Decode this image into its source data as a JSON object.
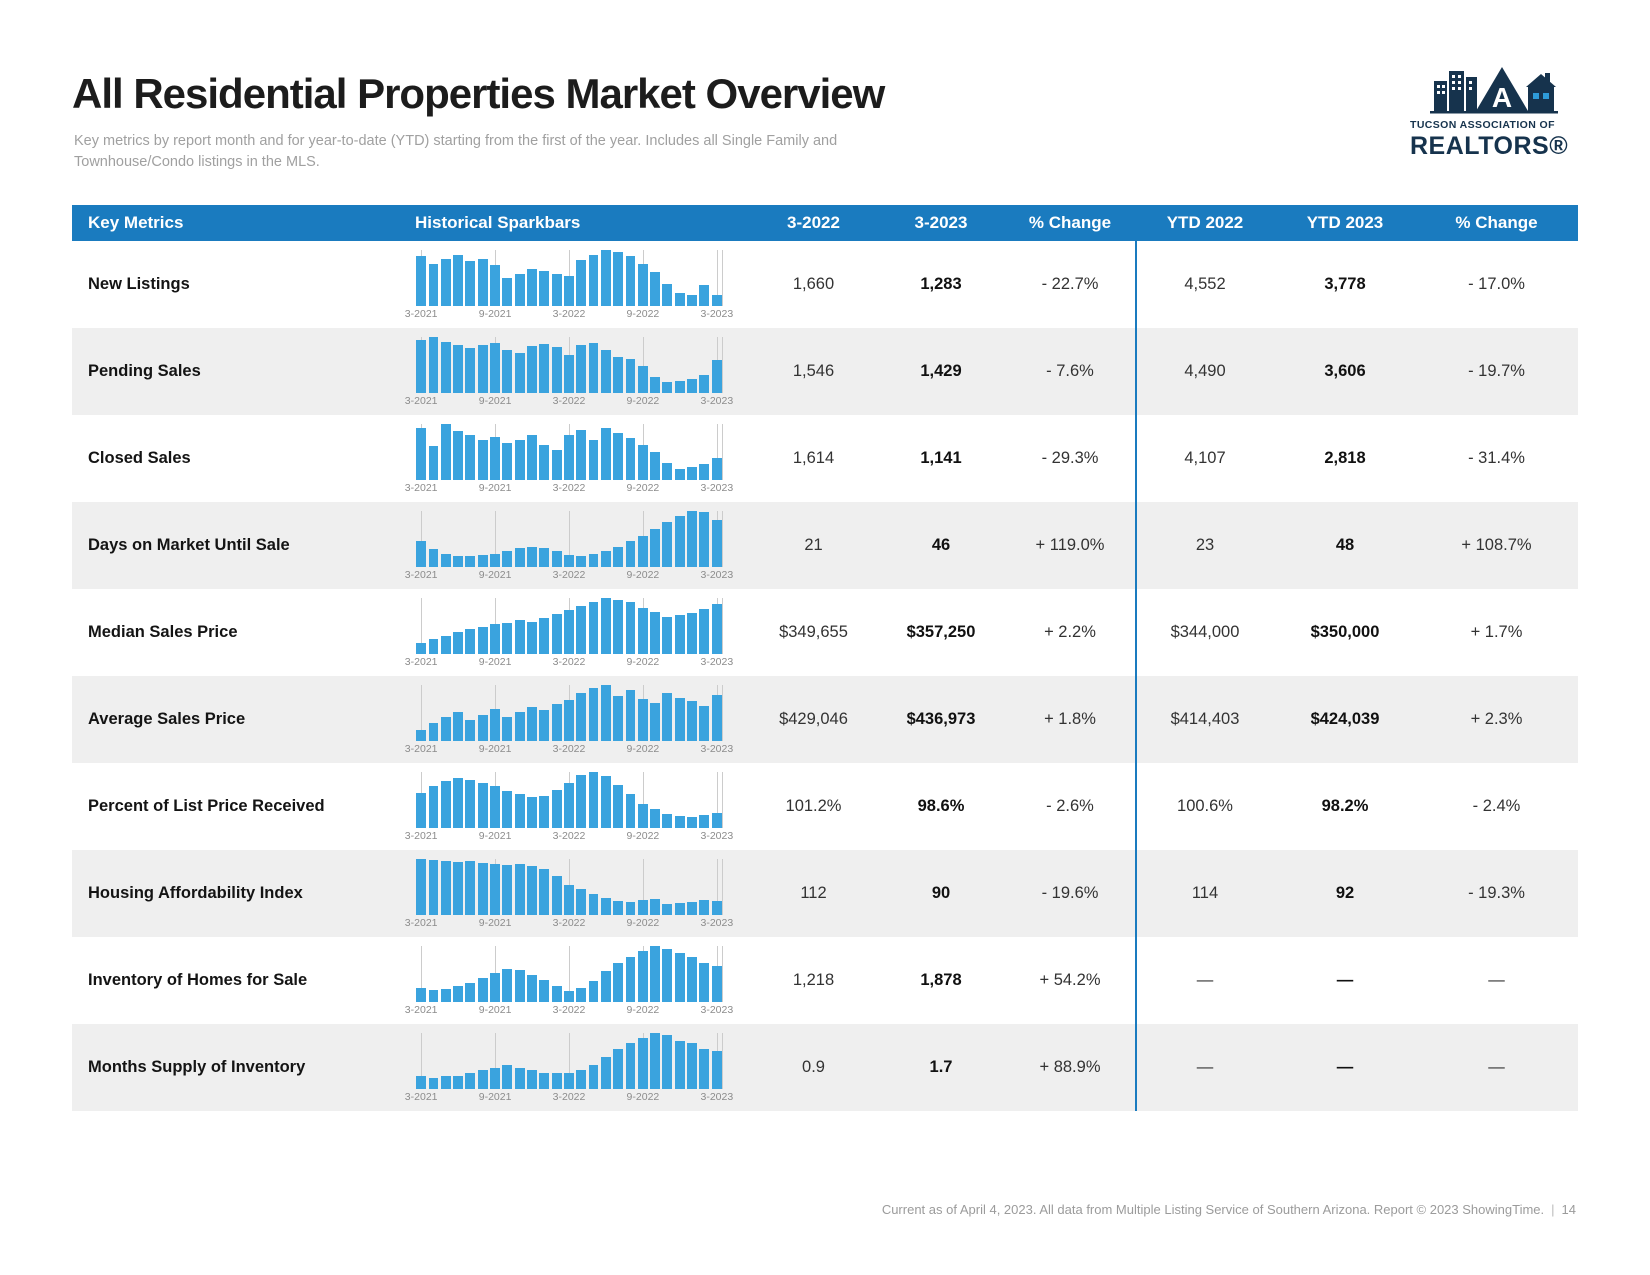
{
  "page": {
    "title": "All Residential Properties Market Overview",
    "subtitle": "Key metrics by report month and for year-to-date (YTD) starting from the first of the year. Includes all Single Family and Townhouse/Condo listings in the MLS.",
    "footer_text": "Current as of April 4, 2023. All data from Multiple Listing Service of Southern Arizona. Report © 2023 ShowingTime.",
    "footer_separator": "|",
    "page_number": "14"
  },
  "logo": {
    "line1": "TUCSON ASSOCIATION OF",
    "line2": "REALTORS®"
  },
  "colors": {
    "header_blue": "#1a7bbf",
    "bar_blue": "#3aa3de",
    "alt_row_gray": "#efefef",
    "logo_navy": "#16334d"
  },
  "table": {
    "headers": [
      "Key Metrics",
      "Historical Sparkbars",
      "3-2022",
      "3-2023",
      "% Change",
      "YTD 2022",
      "YTD 2023",
      "% Change"
    ],
    "axis_labels": [
      "3-2021",
      "9-2021",
      "3-2022",
      "9-2022",
      "3-2023"
    ],
    "rows": [
      {
        "metric": "New Listings",
        "m2022": "1,660",
        "m2023": "1,283",
        "change": "- 22.7%",
        "ytd2022": "4,552",
        "ytd2023": "3,778",
        "ytd_change": "- 17.0%"
      },
      {
        "metric": "Pending Sales",
        "m2022": "1,546",
        "m2023": "1,429",
        "change": "- 7.6%",
        "ytd2022": "4,490",
        "ytd2023": "3,606",
        "ytd_change": "- 19.7%"
      },
      {
        "metric": "Closed Sales",
        "m2022": "1,614",
        "m2023": "1,141",
        "change": "- 29.3%",
        "ytd2022": "4,107",
        "ytd2023": "2,818",
        "ytd_change": "- 31.4%"
      },
      {
        "metric": "Days on Market Until Sale",
        "m2022": "21",
        "m2023": "46",
        "change": "+ 119.0%",
        "ytd2022": "23",
        "ytd2023": "48",
        "ytd_change": "+ 108.7%"
      },
      {
        "metric": "Median Sales Price",
        "m2022": "$349,655",
        "m2023": "$357,250",
        "change": "+ 2.2%",
        "ytd2022": "$344,000",
        "ytd2023": "$350,000",
        "ytd_change": "+ 1.7%"
      },
      {
        "metric": "Average Sales Price",
        "m2022": "$429,046",
        "m2023": "$436,973",
        "change": "+ 1.8%",
        "ytd2022": "$414,403",
        "ytd2023": "$424,039",
        "ytd_change": "+ 2.3%"
      },
      {
        "metric": "Percent of List Price Received",
        "m2022": "101.2%",
        "m2023": "98.6%",
        "change": "- 2.6%",
        "ytd2022": "100.6%",
        "ytd2023": "98.2%",
        "ytd_change": "- 2.4%"
      },
      {
        "metric": "Housing Affordability Index",
        "m2022": "112",
        "m2023": "90",
        "change": "- 19.6%",
        "ytd2022": "114",
        "ytd2023": "92",
        "ytd_change": "- 19.3%"
      },
      {
        "metric": "Inventory of Homes for Sale",
        "m2022": "1,218",
        "m2023": "1,878",
        "change": "+ 54.2%",
        "ytd2022": "—",
        "ytd2023": "—",
        "ytd_change": "—"
      },
      {
        "metric": "Months Supply of Inventory",
        "m2022": "0.9",
        "m2023": "1.7",
        "change": "+ 88.9%",
        "ytd2022": "—",
        "ytd2023": "—",
        "ytd_change": "—"
      }
    ]
  },
  "chart_data": {
    "type": "bar",
    "x": [
      "3-2021",
      "4-2021",
      "5-2021",
      "6-2021",
      "7-2021",
      "8-2021",
      "9-2021",
      "10-2021",
      "11-2021",
      "12-2021",
      "1-2022",
      "2-2022",
      "3-2022",
      "4-2022",
      "5-2022",
      "6-2022",
      "7-2022",
      "8-2022",
      "9-2022",
      "10-2022",
      "11-2022",
      "12-2022",
      "1-2023",
      "2-2023",
      "3-2023"
    ],
    "x_ticks": [
      "3-2021",
      "9-2021",
      "3-2022",
      "9-2022",
      "3-2023"
    ],
    "series": [
      {
        "name": "New Listings",
        "values": [
          2056,
          1912,
          2004,
          2086,
          1968,
          2010,
          1888,
          1620,
          1714,
          1797,
          1760,
          1708,
          1660,
          1980,
          2075,
          2188,
          2140,
          2052,
          1894,
          1738,
          1512,
          1330,
          1294,
          1488,
          1283
        ]
      },
      {
        "name": "Pending Sales",
        "values": [
          1884,
          1950,
          1826,
          1760,
          1698,
          1772,
          1810,
          1648,
          1602,
          1741,
          1790,
          1712,
          1546,
          1774,
          1812,
          1650,
          1508,
          1452,
          1310,
          1066,
          952,
          978,
          1024,
          1108,
          1429
        ]
      },
      {
        "name": "Closed Sales",
        "values": [
          1755,
          1395,
          1848,
          1692,
          1605,
          1512,
          1564,
          1448,
          1498,
          1612,
          1402,
          1310,
          1614,
          1708,
          1512,
          1764,
          1648,
          1552,
          1410,
          1252,
          1044,
          902,
          946,
          1010,
          1141
        ]
      },
      {
        "name": "Days on Market Until Sale",
        "values": [
          31,
          25,
          22,
          20,
          20,
          21,
          22,
          24,
          26,
          27,
          26,
          24,
          21,
          20,
          22,
          24,
          27,
          31,
          35,
          40,
          45,
          49,
          53,
          52,
          46
        ]
      },
      {
        "name": "Median Sales Price",
        "values": [
          310000,
          315000,
          318500,
          324000,
          327500,
          329900,
          333000,
          335000,
          337500,
          336000,
          339900,
          345000,
          349655,
          355000,
          360000,
          365000,
          362500,
          359000,
          352000,
          347500,
          342000,
          344500,
          347000,
          351000,
          357250
        ]
      },
      {
        "name": "Average Sales Price",
        "values": [
          372000,
          386000,
          397000,
          406000,
          391000,
          401000,
          411000,
          396000,
          406000,
          416000,
          409000,
          421000,
          429046,
          441000,
          451000,
          457000,
          436000,
          447000,
          431000,
          422000,
          441000,
          432000,
          426000,
          417000,
          436973
        ]
      },
      {
        "name": "Percent of List Price Received",
        "values": [
          100.3,
          100.9,
          101.4,
          101.6,
          101.5,
          101.2,
          100.9,
          100.5,
          100.2,
          100.0,
          100.1,
          100.6,
          101.2,
          101.9,
          102.2,
          101.8,
          101.0,
          100.2,
          99.4,
          98.9,
          98.5,
          98.3,
          98.2,
          98.4,
          98.6
        ]
      },
      {
        "name": "Housing Affordability Index",
        "values": [
          148,
          146,
          145,
          143,
          144,
          142,
          141,
          139,
          140,
          138,
          134,
          124,
          112,
          106,
          100,
          94,
          90,
          88,
          91,
          93,
          85,
          87,
          89,
          91,
          90
        ]
      },
      {
        "name": "Inventory of Homes for Sale",
        "values": [
          1302,
          1256,
          1288,
          1346,
          1424,
          1552,
          1698,
          1804,
          1756,
          1648,
          1502,
          1348,
          1218,
          1306,
          1498,
          1746,
          1952,
          2104,
          2248,
          2396,
          2302,
          2198,
          2096,
          1954,
          1878
        ]
      },
      {
        "name": "Months Supply of Inventory",
        "values": [
          0.8,
          0.7,
          0.8,
          0.8,
          0.9,
          1.0,
          1.1,
          1.2,
          1.1,
          1.0,
          0.9,
          0.9,
          0.9,
          1.0,
          1.2,
          1.5,
          1.8,
          2.0,
          2.2,
          2.4,
          2.3,
          2.1,
          2.0,
          1.8,
          1.7
        ]
      }
    ]
  }
}
